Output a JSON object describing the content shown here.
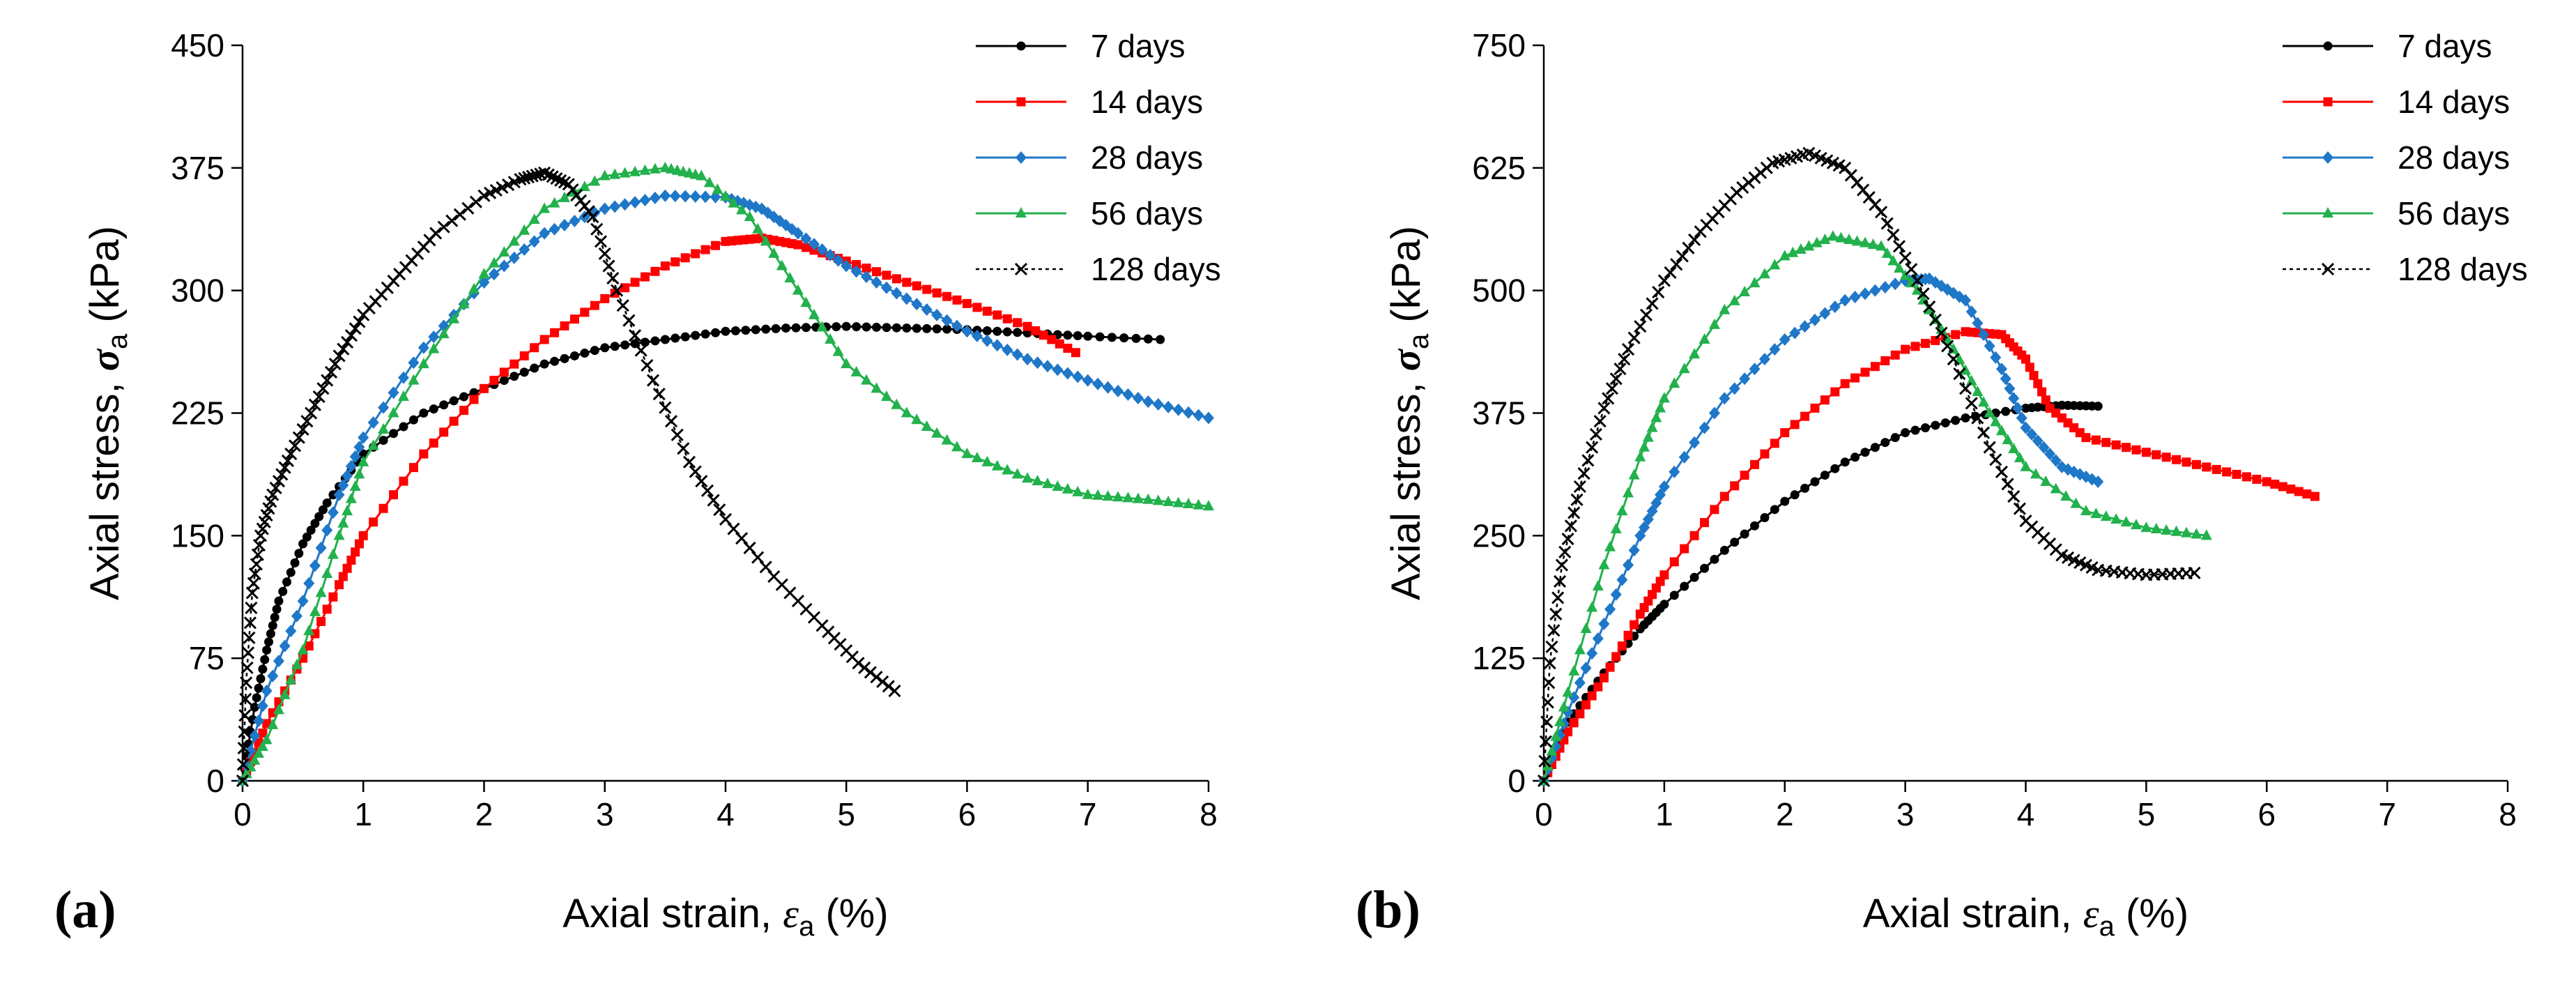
{
  "chart_data": [
    {
      "type": "line",
      "panel_label": "(a)",
      "xlabel_text": "Axial strain, ",
      "xlabel_symbol": "ε",
      "xlabel_sub": "a",
      "xlabel_unit": " (%)",
      "ylabel_text": "Axial stress, ",
      "ylabel_symbol": "σ",
      "ylabel_sub": "a",
      "ylabel_unit": " (kPa)",
      "xlim": [
        0,
        8
      ],
      "ylim": [
        0,
        450
      ],
      "xticks": [
        0,
        1,
        2,
        3,
        4,
        5,
        6,
        7,
        8
      ],
      "yticks": [
        0,
        75,
        150,
        225,
        300,
        375,
        450
      ],
      "legend_position": "top-right",
      "series": [
        {
          "name": "7 days",
          "color": "#000000",
          "marker": "circle",
          "dashed": false,
          "x": [
            0,
            0.1,
            0.2,
            0.3,
            0.5,
            0.7,
            1.0,
            1.5,
            2.0,
            2.5,
            3.0,
            3.5,
            4.0,
            4.5,
            5.0,
            5.5,
            6.0,
            6.5,
            7.0,
            7.6
          ],
          "y": [
            0,
            45,
            80,
            110,
            145,
            170,
            200,
            225,
            240,
            255,
            265,
            270,
            275,
            277,
            278,
            277,
            276,
            274,
            272,
            270
          ]
        },
        {
          "name": "14 days",
          "color": "#ff0000",
          "marker": "square",
          "dashed": false,
          "x": [
            0,
            0.2,
            0.5,
            0.8,
            1.0,
            1.5,
            2.0,
            2.5,
            3.0,
            3.5,
            4.0,
            4.3,
            4.6,
            5.0,
            5.5,
            6.0,
            6.5,
            6.9
          ],
          "y": [
            0,
            35,
            75,
            120,
            150,
            200,
            240,
            270,
            295,
            315,
            330,
            332,
            328,
            318,
            305,
            292,
            278,
            262
          ]
        },
        {
          "name": "28 days",
          "color": "#1f77c8",
          "marker": "diamond",
          "dashed": false,
          "x": [
            0,
            0.2,
            0.5,
            0.8,
            1.0,
            1.5,
            2.0,
            2.5,
            3.0,
            3.5,
            4.0,
            4.3,
            4.6,
            5.0,
            5.5,
            6.0,
            6.5,
            7.0,
            7.5,
            8.0
          ],
          "y": [
            0,
            55,
            110,
            175,
            210,
            265,
            305,
            335,
            350,
            358,
            357,
            350,
            335,
            315,
            295,
            275,
            258,
            245,
            232,
            222
          ]
        },
        {
          "name": "56 days",
          "color": "#22b14c",
          "marker": "triangle",
          "dashed": false,
          "x": [
            0,
            0.2,
            0.5,
            0.8,
            1.0,
            1.5,
            2.0,
            2.5,
            3.0,
            3.5,
            3.8,
            4.2,
            4.6,
            5.0,
            5.5,
            6.0,
            6.5,
            7.0,
            7.5,
            8.0
          ],
          "y": [
            0,
            25,
            80,
            150,
            195,
            255,
            310,
            350,
            370,
            375,
            370,
            345,
            300,
            255,
            225,
            200,
            185,
            175,
            172,
            168
          ]
        },
        {
          "name": "128 days",
          "color": "#000000",
          "marker": "cross",
          "dashed": true,
          "x": [
            0,
            0.03,
            0.08,
            0.15,
            0.25,
            0.4,
            0.6,
            0.8,
            1.0,
            1.3,
            1.6,
            2.0,
            2.3,
            2.5,
            2.7,
            2.9,
            3.1,
            3.4,
            3.7,
            4.0,
            4.4,
            4.8,
            5.1,
            5.4
          ],
          "y": [
            0,
            60,
            115,
            150,
            175,
            200,
            230,
            260,
            285,
            310,
            335,
            358,
            368,
            372,
            365,
            345,
            300,
            245,
            195,
            160,
            125,
            95,
            72,
            55
          ]
        }
      ]
    },
    {
      "type": "line",
      "panel_label": "(b)",
      "xlabel_text": "Axial strain, ",
      "xlabel_symbol": "ε",
      "xlabel_sub": "a",
      "xlabel_unit": " (%)",
      "ylabel_text": "Axial stress, ",
      "ylabel_symbol": "σ",
      "ylabel_sub": "a",
      "ylabel_unit": " (kPa)",
      "xlim": [
        0,
        8
      ],
      "ylim": [
        0,
        750
      ],
      "xticks": [
        0,
        1,
        2,
        3,
        4,
        5,
        6,
        7,
        8
      ],
      "yticks": [
        0,
        125,
        250,
        375,
        500,
        625,
        750
      ],
      "legend_position": "top-right",
      "series": [
        {
          "name": "7 days",
          "color": "#000000",
          "marker": "circle",
          "dashed": false,
          "x": [
            0,
            0.2,
            0.5,
            0.8,
            1.0,
            1.5,
            2.0,
            2.5,
            3.0,
            3.5,
            4.0,
            4.3,
            4.6
          ],
          "y": [
            0,
            60,
            110,
            155,
            180,
            235,
            285,
            325,
            355,
            370,
            380,
            383,
            382
          ]
        },
        {
          "name": "14 days",
          "color": "#ff0000",
          "marker": "square",
          "dashed": false,
          "x": [
            0,
            0.2,
            0.5,
            0.8,
            1.0,
            1.5,
            2.0,
            2.5,
            3.0,
            3.5,
            3.8,
            4.0,
            4.2,
            4.5,
            5.0,
            5.5,
            6.0,
            6.4
          ],
          "y": [
            0,
            50,
            105,
            170,
            210,
            290,
            355,
            405,
            440,
            458,
            455,
            430,
            380,
            350,
            335,
            320,
            305,
            290
          ]
        },
        {
          "name": "28 days",
          "color": "#1f77c8",
          "marker": "diamond",
          "dashed": false,
          "x": [
            0,
            0.2,
            0.5,
            0.8,
            1.0,
            1.5,
            2.0,
            2.5,
            3.0,
            3.2,
            3.5,
            3.8,
            4.0,
            4.3,
            4.6
          ],
          "y": [
            0,
            70,
            160,
            250,
            300,
            390,
            450,
            490,
            510,
            512,
            490,
            420,
            360,
            320,
            305
          ]
        },
        {
          "name": "56 days",
          "color": "#22b14c",
          "marker": "triangle",
          "dashed": false,
          "x": [
            0,
            0.2,
            0.5,
            0.8,
            1.0,
            1.5,
            2.0,
            2.4,
            2.8,
            3.1,
            3.4,
            3.7,
            4.0,
            4.5,
            5.0,
            5.5
          ],
          "y": [
            0,
            90,
            220,
            330,
            390,
            480,
            535,
            555,
            545,
            500,
            440,
            375,
            320,
            275,
            258,
            250
          ]
        },
        {
          "name": "128 days",
          "color": "#000000",
          "marker": "cross",
          "dashed": true,
          "x": [
            0,
            0.05,
            0.15,
            0.3,
            0.5,
            0.7,
            1.0,
            1.3,
            1.6,
            1.9,
            2.2,
            2.5,
            2.8,
            3.1,
            3.4,
            3.7,
            4.0,
            4.3,
            4.6,
            5.0,
            5.4
          ],
          "y": [
            0,
            120,
            220,
            300,
            380,
            440,
            510,
            560,
            600,
            630,
            640,
            625,
            580,
            510,
            430,
            340,
            265,
            230,
            215,
            210,
            212
          ]
        }
      ]
    }
  ]
}
